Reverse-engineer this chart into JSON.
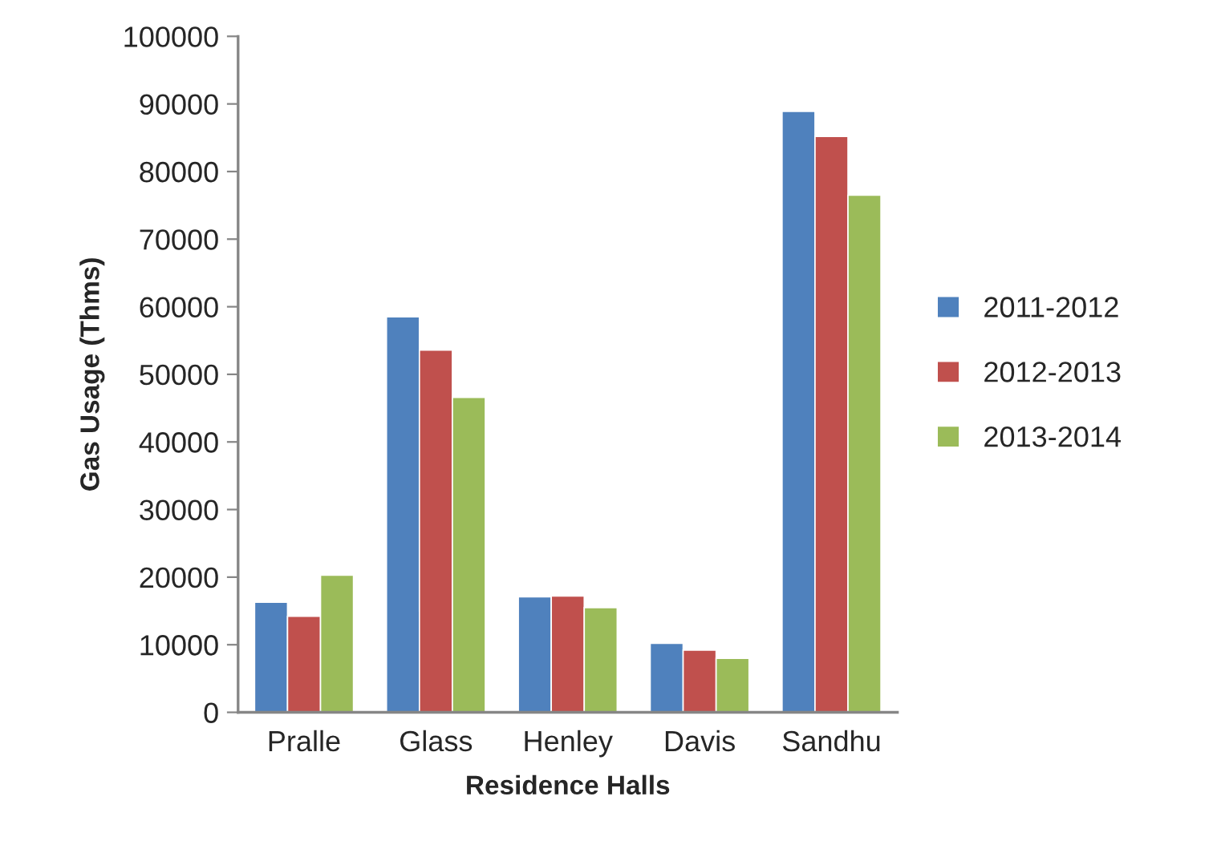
{
  "chart_data": {
    "type": "bar",
    "xlabel": "Residence Halls",
    "ylabel": "Gas Usage (Thms)",
    "categories": [
      "Pralle",
      "Glass",
      "Henley",
      "Davis",
      "Sandhu"
    ],
    "series": [
      {
        "name": "2011-2012",
        "color": "#4f81bd",
        "values": [
          16300,
          58500,
          17100,
          10200,
          88900
        ]
      },
      {
        "name": "2012-2013",
        "color": "#c0504d",
        "values": [
          14200,
          53600,
          17200,
          9200,
          85200
        ]
      },
      {
        "name": "2013-2014",
        "color": "#9bbb59",
        "values": [
          20300,
          46600,
          15500,
          8000,
          76500
        ]
      }
    ],
    "ylim": [
      0,
      100000
    ],
    "yticks": [
      0,
      10000,
      20000,
      30000,
      40000,
      50000,
      60000,
      70000,
      80000,
      90000,
      100000
    ],
    "grid": false,
    "legend": "right"
  }
}
